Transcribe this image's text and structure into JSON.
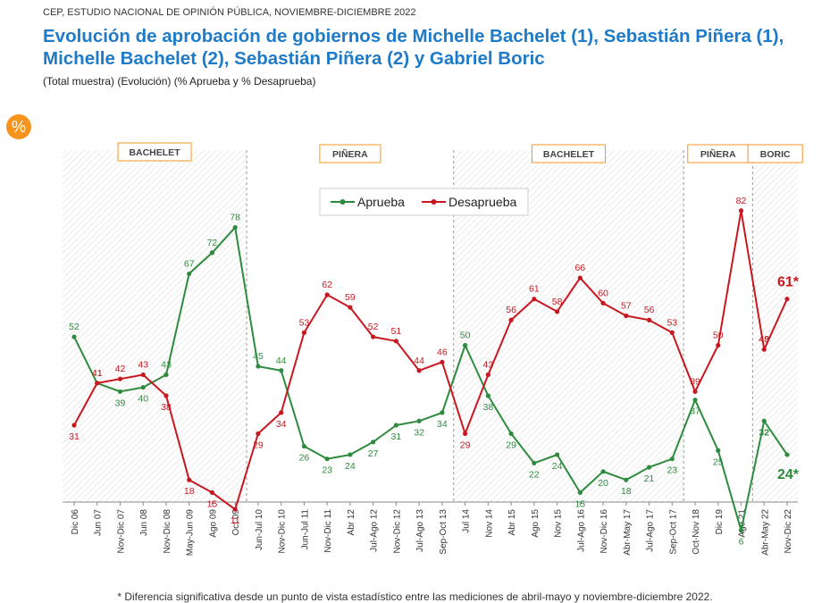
{
  "header": {
    "source": "CEP, ESTUDIO NACIONAL DE OPINIÓN PÚBLICA, NOVIEMBRE-DICIEMBRE 2022",
    "title_line1": "Evolución de aprobación de gobiernos de Michelle Bachelet (1), Sebastián Piñera (1),",
    "title_line2": "Michelle Bachelet (2), Sebastián Piñera (2) y Gabriel Boric",
    "subtitle": "(Total muestra) (Evolución) (% Aprueba  y % Desaprueba)"
  },
  "badge_label": "%",
  "footnote": "* Diferencia significativa desde un punto de vista estadístico entre las mediciones de abril-mayo y noviembre-diciembre 2022.",
  "chart_data": {
    "type": "line",
    "categories": [
      "Dic 06",
      "Jun 07",
      "Nov-Dic 07",
      "Jun 08",
      "Nov-Dic 08",
      "May-Jun 09",
      "Ago 09",
      "Oct 09",
      "Jun-Jul 10",
      "Nov-Dic 10",
      "Jun-Jul 11",
      "Nov-Dic 11",
      "Abr 12",
      "Jul-Ago 12",
      "Nov-Dic 12",
      "Jul-Ago 13",
      "Sep-Oct 13",
      "Jul 14",
      "Nov 14",
      "Abr 15",
      "Ago 15",
      "Nov 15",
      "Jul-Ago 16",
      "Nov-Dic 16",
      "Abr-May 17",
      "Jul-Ago 17",
      "Sep-Oct 17",
      "Oct-Nov 18",
      "Dic 19",
      "Ago 21",
      "Abr-May 22",
      "Nov-Dic 22"
    ],
    "series": [
      {
        "name": "Aprueba",
        "color": "#2e8b3e",
        "values": [
          52,
          41,
          39,
          40,
          43,
          67,
          72,
          78,
          45,
          44,
          26,
          23,
          24,
          27,
          31,
          32,
          34,
          50,
          38,
          29,
          22,
          24,
          15,
          20,
          18,
          21,
          23,
          37,
          25,
          6,
          32,
          24
        ],
        "labels": [
          "52",
          "41",
          "39",
          "40",
          "43",
          "67",
          "72",
          "78",
          "45",
          "44",
          "26",
          "23",
          "24",
          "27",
          "31",
          "32",
          "34",
          "50",
          "38",
          "29",
          "22",
          "24",
          "15",
          "20",
          "18",
          "21",
          "23",
          "37",
          "25",
          "6",
          "32",
          "24*"
        ]
      },
      {
        "name": "Desaprueba",
        "color": "#c8171f",
        "values": [
          31,
          41,
          42,
          43,
          38,
          18,
          15,
          11,
          29,
          34,
          53,
          62,
          59,
          52,
          51,
          44,
          46,
          29,
          43,
          56,
          61,
          58,
          66,
          60,
          57,
          56,
          53,
          39,
          50,
          82,
          49,
          61
        ],
        "labels": [
          "31",
          "41",
          "42",
          "43",
          "38",
          "18",
          "15",
          "11",
          "29",
          "34",
          "53",
          "62",
          "59",
          "52",
          "51",
          "44",
          "46",
          "29",
          "43",
          "56",
          "61",
          "58",
          "66",
          "60",
          "57",
          "56",
          "53",
          "39",
          "50",
          "82",
          "49",
          "61*"
        ]
      }
    ],
    "periods": [
      {
        "label": "BACHELET",
        "from": 0,
        "to": 7,
        "shaded": true
      },
      {
        "label": "PIÑERA",
        "from": 8,
        "to": 16,
        "shaded": false
      },
      {
        "label": "BACHELET",
        "from": 17,
        "to": 26,
        "shaded": true
      },
      {
        "label": "PIÑERA",
        "from": 27,
        "to": 29,
        "shaded": false
      },
      {
        "label": "BORIC",
        "from": 30,
        "to": 31,
        "shaded": true
      }
    ],
    "ylim": [
      0,
      100
    ],
    "legend_position": "top-center",
    "grid": false,
    "title": "",
    "xlabel": "",
    "ylabel": ""
  }
}
